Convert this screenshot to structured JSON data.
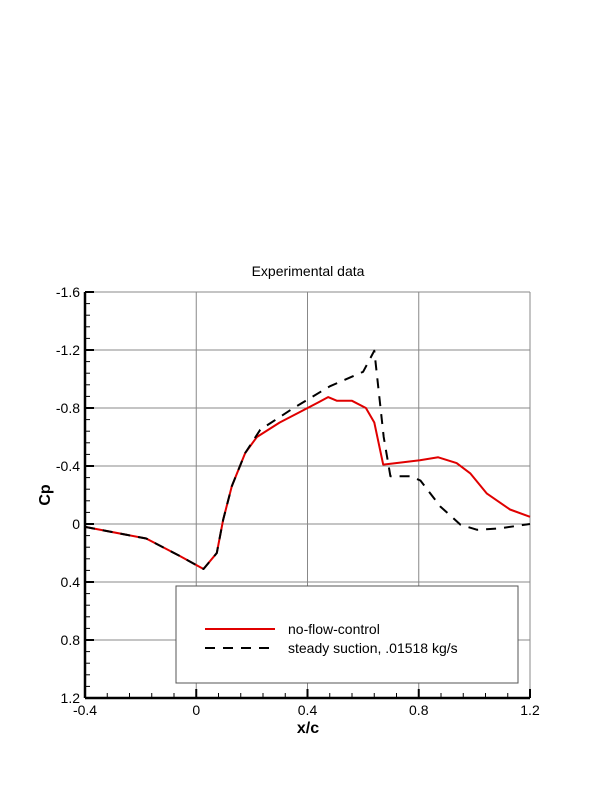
{
  "chart_data": {
    "type": "line",
    "title": "Experimental data",
    "xlabel": "x/c",
    "ylabel": "Cp",
    "xlim": [
      -0.4,
      1.2
    ],
    "ylim": [
      1.2,
      -1.6
    ],
    "y_inverted": true,
    "grid": true,
    "legend_placement": "bottom-right",
    "xticks": [
      "-0.4",
      "0",
      "0.4",
      "0.8",
      "1.2"
    ],
    "yticks": [
      "-1.6",
      "-1.2",
      "-0.8",
      "-0.4",
      "0",
      "0.4",
      "0.8",
      "1.2"
    ],
    "series": [
      {
        "name": "no-flow-control",
        "color": "#e00000",
        "style": "solid",
        "x": [
          -0.4,
          -0.18,
          -0.06,
          0.026,
          0.074,
          0.097,
          0.128,
          0.176,
          0.218,
          0.3,
          0.37,
          0.44,
          0.474,
          0.506,
          0.56,
          0.61,
          0.64,
          0.672,
          0.718,
          0.804,
          0.87,
          0.936,
          0.985,
          1.045,
          1.128,
          1.2
        ],
        "y": [
          0.02,
          0.1,
          0.22,
          0.31,
          0.2,
          -0.03,
          -0.26,
          -0.49,
          -0.6,
          -0.7,
          -0.77,
          -0.84,
          -0.875,
          -0.85,
          -0.85,
          -0.8,
          -0.7,
          -0.41,
          -0.42,
          -0.44,
          -0.46,
          -0.42,
          -0.35,
          -0.21,
          -0.1,
          -0.05
        ]
      },
      {
        "name": "steady suction, .01518 kg/s",
        "color": "#000000",
        "style": "dashed",
        "x": [
          -0.4,
          -0.18,
          -0.06,
          0.026,
          0.074,
          0.097,
          0.128,
          0.176,
          0.23,
          0.35,
          0.48,
          0.6,
          0.64,
          0.674,
          0.698,
          0.77,
          0.806,
          0.878,
          0.95,
          1.01,
          1.09,
          1.2
        ],
        "y": [
          0.02,
          0.1,
          0.22,
          0.31,
          0.2,
          -0.03,
          -0.26,
          -0.49,
          -0.65,
          -0.8,
          -0.95,
          -1.05,
          -1.195,
          -0.6,
          -0.33,
          -0.33,
          -0.3,
          -0.12,
          0.005,
          0.04,
          0.03,
          0.0
        ]
      }
    ]
  }
}
